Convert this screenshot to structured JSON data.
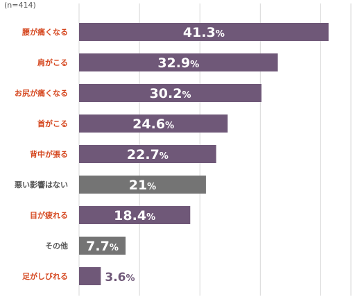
{
  "chart_data": {
    "type": "bar",
    "orientation": "horizontal",
    "note": "(n=414)",
    "categories": [
      "腰が痛くなる",
      "肩がこる",
      "お尻が痛くなる",
      "首がこる",
      "背中が張る",
      "悪い影響はない",
      "目が疲れる",
      "その他",
      "足がしびれる"
    ],
    "values": [
      41.3,
      32.9,
      30.2,
      24.6,
      22.7,
      21,
      18.4,
      7.7,
      3.6
    ],
    "value_labels": [
      "41.3",
      "32.9",
      "30.2",
      "24.6",
      "22.7",
      "21",
      "18.4",
      "7.7",
      "3.6"
    ],
    "unit": "%",
    "xlim": [
      0,
      45
    ],
    "grid": true,
    "bar_colors": [
      "#6f5878",
      "#6f5878",
      "#6f5878",
      "#6f5878",
      "#6f5878",
      "#747474",
      "#6f5878",
      "#747474",
      "#6f5878"
    ],
    "label_colors": [
      "#d5471f",
      "#d5471f",
      "#d5471f",
      "#d5471f",
      "#d5471f",
      "#555555",
      "#d5471f",
      "#555555",
      "#d5471f"
    ],
    "outside_value_color": "#6f5878"
  }
}
